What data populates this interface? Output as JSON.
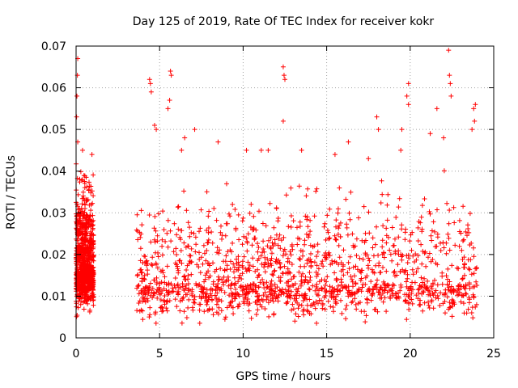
{
  "chart_data": {
    "type": "scatter",
    "title": "Day 125 of 2019, Rate Of TEC Index for receiver kokr",
    "xlabel": "GPS time / hours",
    "ylabel": "ROTI / TECUs",
    "xlim": [
      0,
      25
    ],
    "ylim": [
      0,
      0.07
    ],
    "x_ticks": [
      "0",
      "5",
      "10",
      "15",
      "20",
      "25"
    ],
    "y_ticks": [
      "0",
      "0.01",
      "0.02",
      "0.03",
      "0.04",
      "0.05",
      "0.06",
      "0.07"
    ],
    "x_tick_values": [
      0,
      5,
      10,
      15,
      20,
      25
    ],
    "y_tick_values": [
      0,
      0.01,
      0.02,
      0.03,
      0.04,
      0.05,
      0.06,
      0.07
    ],
    "grid": true,
    "marker": "+",
    "color": "#ff0000",
    "series": [
      {
        "name": "ROTI",
        "segments": [
          {
            "x_start": 0.0,
            "x_end": 1.05,
            "y_median": 0.016,
            "y_spread": 0.006,
            "count": 900
          },
          {
            "x_start": 3.6,
            "x_end": 24.0,
            "y_median": 0.013,
            "y_spread": 0.006,
            "count": 5200
          }
        ],
        "peaks": [
          {
            "x": 0.1,
            "y": 0.067
          },
          {
            "x": 0.08,
            "y": 0.063
          },
          {
            "x": 0.05,
            "y": 0.058
          },
          {
            "x": 0.03,
            "y": 0.053
          },
          {
            "x": 0.1,
            "y": 0.047
          },
          {
            "x": 0.95,
            "y": 0.044
          },
          {
            "x": 4.4,
            "y": 0.062
          },
          {
            "x": 4.45,
            "y": 0.061
          },
          {
            "x": 4.5,
            "y": 0.059
          },
          {
            "x": 4.7,
            "y": 0.051
          },
          {
            "x": 4.8,
            "y": 0.05
          },
          {
            "x": 5.5,
            "y": 0.055
          },
          {
            "x": 5.6,
            "y": 0.057
          },
          {
            "x": 5.65,
            "y": 0.064
          },
          {
            "x": 5.7,
            "y": 0.063
          },
          {
            "x": 6.5,
            "y": 0.048
          },
          {
            "x": 7.1,
            "y": 0.05
          },
          {
            "x": 8.5,
            "y": 0.047
          },
          {
            "x": 10.2,
            "y": 0.045
          },
          {
            "x": 11.5,
            "y": 0.045
          },
          {
            "x": 12.4,
            "y": 0.065
          },
          {
            "x": 12.45,
            "y": 0.063
          },
          {
            "x": 12.5,
            "y": 0.062
          },
          {
            "x": 12.4,
            "y": 0.052
          },
          {
            "x": 13.5,
            "y": 0.045
          },
          {
            "x": 15.5,
            "y": 0.044
          },
          {
            "x": 16.3,
            "y": 0.047
          },
          {
            "x": 17.5,
            "y": 0.043
          },
          {
            "x": 18.0,
            "y": 0.053
          },
          {
            "x": 18.1,
            "y": 0.05
          },
          {
            "x": 19.5,
            "y": 0.05
          },
          {
            "x": 19.9,
            "y": 0.061
          },
          {
            "x": 19.8,
            "y": 0.058
          },
          {
            "x": 19.9,
            "y": 0.056
          },
          {
            "x": 21.2,
            "y": 0.049
          },
          {
            "x": 21.6,
            "y": 0.055
          },
          {
            "x": 22.0,
            "y": 0.048
          },
          {
            "x": 22.3,
            "y": 0.069
          },
          {
            "x": 22.35,
            "y": 0.063
          },
          {
            "x": 22.4,
            "y": 0.061
          },
          {
            "x": 22.45,
            "y": 0.058
          },
          {
            "x": 23.7,
            "y": 0.05
          },
          {
            "x": 23.8,
            "y": 0.055
          },
          {
            "x": 23.9,
            "y": 0.056
          },
          {
            "x": 23.85,
            "y": 0.052
          }
        ]
      }
    ]
  }
}
